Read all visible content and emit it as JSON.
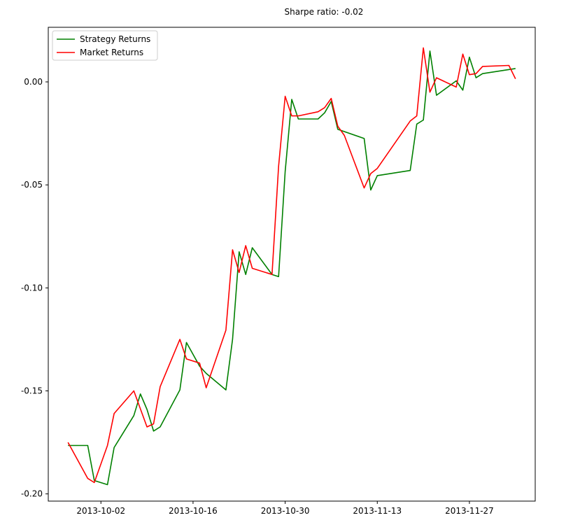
{
  "chart_data": {
    "type": "line",
    "title": "Sharpe ratio: -0.02",
    "xlabel": "",
    "ylabel": "",
    "x_ticks": [
      "2013-10-02",
      "2013-10-16",
      "2013-10-30",
      "2013-11-13",
      "2013-11-27"
    ],
    "y_ticks": [
      "0.00",
      "-0.05",
      "-0.10",
      "-0.15",
      "-0.20"
    ],
    "xlim": [
      "2013-09-24",
      "2013-12-07"
    ],
    "ylim": [
      -0.2035,
      0.0265
    ],
    "grid": false,
    "legend": "top-left",
    "series": [
      {
        "name": "Strategy Returns",
        "color": "#008000",
        "x": [
          "2013-09-27",
          "2013-09-30",
          "2013-10-01",
          "2013-10-03",
          "2013-10-04",
          "2013-10-07",
          "2013-10-08",
          "2013-10-09",
          "2013-10-10",
          "2013-10-11",
          "2013-10-14",
          "2013-10-15",
          "2013-10-17",
          "2013-10-18",
          "2013-10-21",
          "2013-10-22",
          "2013-10-23",
          "2013-10-24",
          "2013-10-25",
          "2013-10-28",
          "2013-10-29",
          "2013-10-30",
          "2013-10-31",
          "2013-11-01",
          "2013-11-04",
          "2013-11-05",
          "2013-11-06",
          "2013-11-07",
          "2013-11-11",
          "2013-11-12",
          "2013-11-13",
          "2013-11-18",
          "2013-11-19",
          "2013-11-20",
          "2013-11-21",
          "2013-11-22",
          "2013-11-25",
          "2013-11-26",
          "2013-11-27",
          "2013-11-28",
          "2013-11-29",
          "2013-12-04"
        ],
        "values": [
          -0.1765,
          -0.1765,
          -0.1935,
          -0.1955,
          -0.1775,
          -0.162,
          -0.1515,
          -0.159,
          -0.1695,
          -0.1675,
          -0.1495,
          -0.1265,
          -0.138,
          -0.1415,
          -0.1495,
          -0.125,
          -0.0825,
          -0.0935,
          -0.0805,
          -0.0935,
          -0.0945,
          -0.0435,
          -0.0085,
          -0.018,
          -0.018,
          -0.015,
          -0.0095,
          -0.023,
          -0.0275,
          -0.0525,
          -0.0455,
          -0.043,
          -0.0205,
          -0.0185,
          0.015,
          -0.0065,
          0.0005,
          -0.004,
          0.012,
          0.002,
          0.004,
          0.0065
        ]
      },
      {
        "name": "Market Returns",
        "color": "#ff0000",
        "x": [
          "2013-09-27",
          "2013-09-30",
          "2013-10-01",
          "2013-10-03",
          "2013-10-04",
          "2013-10-07",
          "2013-10-09",
          "2013-10-10",
          "2013-10-11",
          "2013-10-14",
          "2013-10-15",
          "2013-10-17",
          "2013-10-18",
          "2013-10-21",
          "2013-10-22",
          "2013-10-23",
          "2013-10-24",
          "2013-10-25",
          "2013-10-28",
          "2013-10-29",
          "2013-10-30",
          "2013-10-31",
          "2013-11-01",
          "2013-11-04",
          "2013-11-05",
          "2013-11-06",
          "2013-11-07",
          "2013-11-08",
          "2013-11-11",
          "2013-11-12",
          "2013-11-13",
          "2013-11-18",
          "2013-11-19",
          "2013-11-20",
          "2013-11-21",
          "2013-11-22",
          "2013-11-25",
          "2013-11-26",
          "2013-11-27",
          "2013-11-28",
          "2013-11-29",
          "2013-12-03",
          "2013-12-04"
        ],
        "values": [
          -0.175,
          -0.1925,
          -0.1945,
          -0.1765,
          -0.161,
          -0.15,
          -0.1675,
          -0.166,
          -0.148,
          -0.125,
          -0.1345,
          -0.1365,
          -0.1485,
          -0.1205,
          -0.0815,
          -0.0925,
          -0.0795,
          -0.0905,
          -0.0935,
          -0.041,
          -0.007,
          -0.0165,
          -0.0165,
          -0.0145,
          -0.0125,
          -0.008,
          -0.0215,
          -0.026,
          -0.0515,
          -0.0445,
          -0.042,
          -0.019,
          -0.0165,
          0.0165,
          -0.005,
          0.002,
          -0.0025,
          0.0135,
          0.0035,
          0.004,
          0.0075,
          0.008,
          0.0015
        ]
      }
    ]
  }
}
